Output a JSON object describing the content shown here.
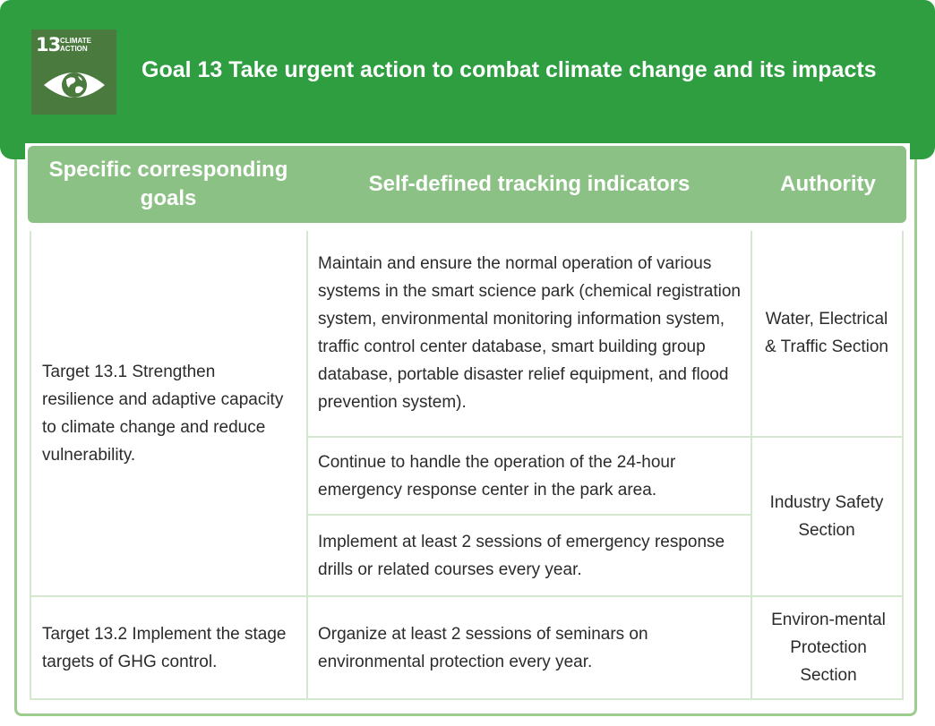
{
  "sdg_icon": {
    "number": "13",
    "label": "CLIMATE ACTION",
    "icon": "eye-earth-icon"
  },
  "title": "Goal 13 Take urgent action to combat climate change and its impacts",
  "colors": {
    "banner": "#2e9e41",
    "header_row": "#8cc185",
    "border": "#9ccc8e"
  },
  "headers": {
    "goals": "Specific corresponding goals",
    "indicators": "Self-defined tracking indicators",
    "authority": "Authority"
  },
  "rows": {
    "target_13_1": "Target 13.1 Strengthen resilience and adaptive capacity to climate change and reduce vulnerability.",
    "ind_1": "Maintain and ensure the normal operation of various systems in the smart science park (chemical registration system, environmental monitoring information system, traffic control center database, smart building group database, portable disaster relief equipment, and flood prevention system).",
    "auth_1": "Water, Electrical & Traffic Section",
    "ind_2": "Continue to handle the operation of the 24-hour emergency response center in the park area.",
    "ind_3": "Implement at least 2 sessions of emergency response drills or related courses every year.",
    "auth_2": "Industry Safety Section",
    "target_13_2": "Target 13.2 Implement the stage targets of GHG control.",
    "ind_4": "Organize at least 2 sessions of seminars on environmental protection every year.",
    "auth_3": "Environ-mental Protection Section"
  }
}
